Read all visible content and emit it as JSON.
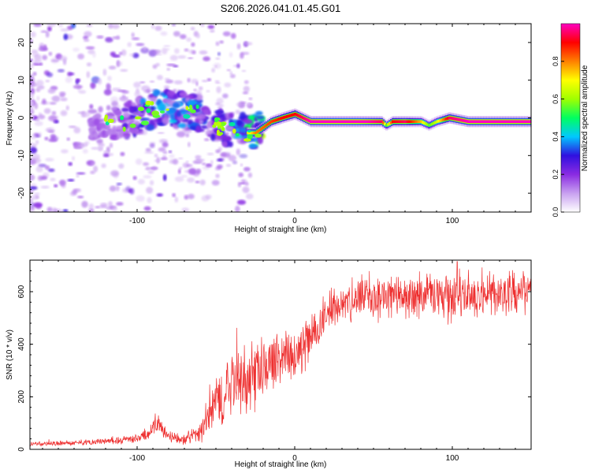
{
  "title": "S206.2026.041.01.45.G01",
  "chart_data": [
    {
      "type": "heatmap",
      "name": "spectrogram",
      "xlabel": "Height of straight line (km)",
      "ylabel": "Frequency (Hz)",
      "xlim": [
        -168,
        150
      ],
      "ylim": [
        -25,
        25
      ],
      "x_ticks": [
        -100,
        0,
        100
      ],
      "x_tick_labels": [
        "-100",
        "0",
        "100"
      ],
      "y_ticks": [
        -20,
        -10,
        0,
        10,
        20
      ],
      "y_tick_labels": [
        "-20",
        "-10",
        "0",
        "10",
        "20"
      ],
      "colorbar": {
        "label": "Normalized spectral amplitude",
        "range": [
          0,
          1
        ],
        "ticks": [
          0.0,
          0.2,
          0.4,
          0.6,
          0.8
        ],
        "tick_labels": [
          "0.0",
          "0.2",
          "0.4",
          "0.6",
          "0.8"
        ],
        "colors": [
          "#ffffff",
          "#c8a0f0",
          "#8a2be2",
          "#3010e0",
          "#00c8ff",
          "#00ff60",
          "#a0ff00",
          "#ffff00",
          "#ff8000",
          "#ff0000",
          "#ff00c0"
        ]
      },
      "ridge": {
        "x": [
          -168,
          -140,
          -125,
          -110,
          -95,
          -85,
          -72,
          -60,
          -50,
          -40,
          -32,
          -25,
          -15,
          -8,
          0,
          10,
          20,
          40,
          55,
          58,
          62,
          70,
          80,
          85,
          90,
          98,
          110,
          130,
          150
        ],
        "freq": [
          0,
          -2,
          -2,
          -1,
          1,
          3,
          2,
          1,
          -2,
          -3,
          -4,
          -4,
          -1,
          0,
          1,
          -1,
          -1,
          -1,
          -1,
          -2,
          -1,
          -1,
          -1,
          -2,
          -1,
          0,
          -1,
          -1,
          -1
        ],
        "intensity": [
          0.05,
          0.15,
          0.2,
          0.3,
          0.45,
          0.5,
          0.45,
          0.4,
          0.35,
          0.4,
          0.55,
          0.75,
          0.8,
          0.85,
          0.85,
          0.95,
          0.98,
          0.98,
          0.9,
          0.5,
          0.85,
          0.9,
          0.7,
          0.5,
          0.6,
          0.9,
          0.95,
          0.95,
          0.95
        ]
      }
    },
    {
      "type": "line",
      "name": "snr",
      "xlabel": "Height of straight line (km)",
      "ylabel": "SNR (10 * v/v)",
      "xlim": [
        -168,
        150
      ],
      "ylim": [
        0,
        720
      ],
      "x_ticks": [
        -100,
        0,
        100
      ],
      "x_tick_labels": [
        "-100",
        "0",
        "100"
      ],
      "y_ticks": [
        0,
        200,
        400,
        600
      ],
      "y_tick_labels": [
        "0",
        "200",
        "400",
        "600"
      ],
      "color": "#ee3030",
      "envelope": {
        "x": [
          -168,
          -140,
          -120,
          -100,
          -92,
          -88,
          -80,
          -70,
          -60,
          -50,
          -40,
          -30,
          -20,
          -10,
          0,
          10,
          20,
          30,
          40,
          60,
          80,
          100,
          120,
          150
        ],
        "mean": [
          20,
          25,
          30,
          40,
          60,
          100,
          50,
          40,
          60,
          180,
          250,
          260,
          300,
          350,
          360,
          420,
          520,
          560,
          570,
          580,
          590,
          580,
          590,
          600
        ],
        "spread": [
          10,
          12,
          15,
          20,
          30,
          40,
          25,
          25,
          60,
          120,
          150,
          150,
          140,
          120,
          100,
          110,
          90,
          80,
          100,
          100,
          110,
          110,
          100,
          100
        ]
      }
    }
  ]
}
